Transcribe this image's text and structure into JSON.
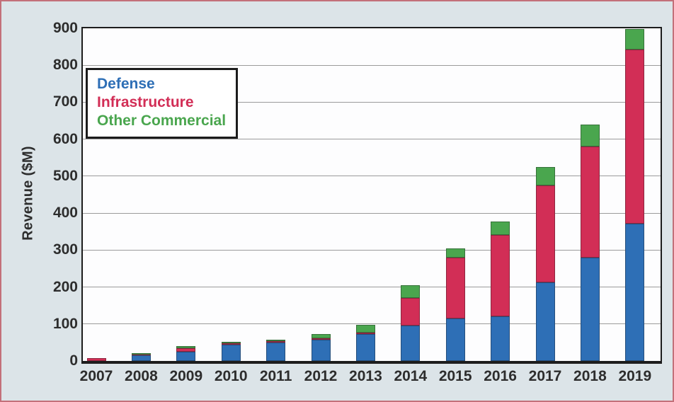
{
  "page": {
    "colors": {
      "page_bg": "#dce4e8",
      "plot_bg": "#fdfdfe",
      "frame": "#1d1d1d",
      "grid": "#9b9b9b",
      "text": "#2d2d2d",
      "outer_border": "#c3707a"
    }
  },
  "chart_data": {
    "type": "bar",
    "stacked": true,
    "title": "",
    "xlabel": "",
    "ylabel": "Revenue ($M)",
    "ylim": [
      0,
      900
    ],
    "ytick_step": 100,
    "yticks": [
      0,
      100,
      200,
      300,
      400,
      500,
      600,
      700,
      800,
      900
    ],
    "grid": true,
    "legend_position": "upper-left-inside",
    "categories": [
      "2007",
      "2008",
      "2009",
      "2010",
      "2011",
      "2012",
      "2013",
      "2014",
      "2015",
      "2016",
      "2017",
      "2018",
      "2019"
    ],
    "series": [
      {
        "name": "Defense",
        "color": "#2e6fb6",
        "values": [
          0,
          15,
          25,
          45,
          50,
          58,
          72,
          95,
          115,
          120,
          212,
          280,
          372
        ]
      },
      {
        "name": "Infrastructure",
        "color": "#d22e56",
        "values": [
          8,
          2,
          10,
          3,
          3,
          3,
          4,
          75,
          165,
          220,
          263,
          300,
          470
        ]
      },
      {
        "name": "Other Commercial",
        "color": "#4aa64e",
        "values": [
          0,
          4,
          5,
          3,
          5,
          11,
          21,
          35,
          25,
          38,
          50,
          60,
          56
        ]
      }
    ],
    "totals": [
      8,
      21,
      40,
      51,
      58,
      72,
      97,
      205,
      305,
      378,
      525,
      640,
      898
    ]
  }
}
